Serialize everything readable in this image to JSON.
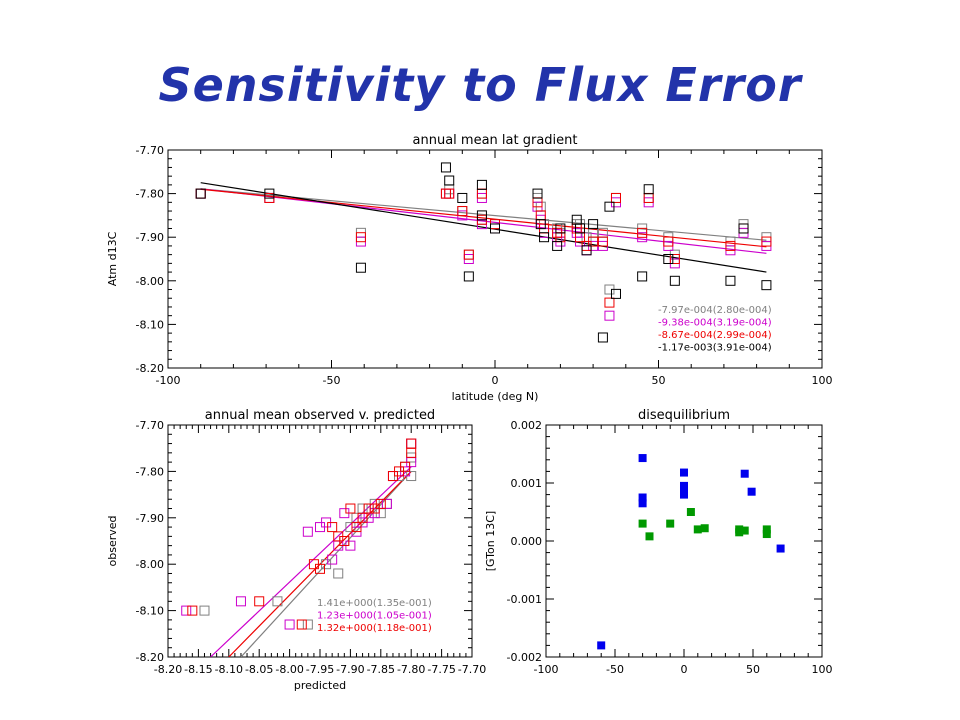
{
  "slide": {
    "title": "Sensitivity to Flux Error"
  },
  "chart_data": [
    {
      "id": "top",
      "type": "scatter",
      "title": "annual mean lat gradient",
      "xlabel": "latitude (deg N)",
      "ylabel": "Atm d13C",
      "xlim": [
        -100,
        100
      ],
      "ylim": [
        -8.2,
        -7.7
      ],
      "xticks": [
        "-100",
        "-50",
        "0",
        "50",
        "100"
      ],
      "yticks": [
        "-7.70",
        "-7.80",
        "-7.90",
        "-8.00",
        "-8.10",
        "-8.20"
      ],
      "x": [
        -90,
        -69,
        -41,
        -15,
        -14,
        -10,
        -8,
        -4,
        -4,
        0,
        13,
        14,
        15,
        19,
        20,
        25,
        26,
        28,
        30,
        33,
        35,
        37,
        45,
        47,
        53,
        55,
        72,
        76,
        83
      ],
      "series": [
        {
          "color": "#808080",
          "y": [
            -7.8,
            -7.81,
            -7.89,
            -7.8,
            -7.79,
            -7.84,
            -7.94,
            -7.86,
            -7.8,
            -7.87,
            -7.81,
            -7.83,
            -7.87,
            -7.88,
            -7.89,
            -7.87,
            -7.87,
            -7.9,
            -7.89,
            -7.89,
            -8.02,
            -7.81,
            -7.88,
            -7.81,
            -7.9,
            -7.94,
            -7.91,
            -7.87,
            -7.9
          ]
        },
        {
          "color": "#cc00cc",
          "y": [
            -7.8,
            -7.81,
            -7.91,
            -7.8,
            -7.8,
            -7.85,
            -7.95,
            -7.87,
            -7.81,
            -7.88,
            -7.83,
            -7.86,
            -7.89,
            -7.9,
            -7.91,
            -7.89,
            -7.91,
            -7.93,
            -7.92,
            -7.92,
            -8.08,
            -7.82,
            -7.9,
            -7.82,
            -7.92,
            -7.96,
            -7.93,
            -7.89,
            -7.92
          ]
        },
        {
          "color": "#ee0000",
          "y": [
            -7.8,
            -7.81,
            -7.9,
            -7.8,
            -7.8,
            -7.84,
            -7.94,
            -7.86,
            -7.8,
            -7.87,
            -7.82,
            -7.85,
            -7.88,
            -7.89,
            -7.9,
            -7.88,
            -7.9,
            -7.92,
            -7.91,
            -7.91,
            -8.05,
            -7.81,
            -7.89,
            -7.81,
            -7.91,
            -7.95,
            -7.92,
            -7.88,
            -7.91
          ]
        },
        {
          "color": "#000000",
          "y": [
            -7.8,
            -7.8,
            -7.97,
            -7.74,
            -7.77,
            -7.81,
            -7.99,
            -7.78,
            -7.85,
            -7.88,
            -7.8,
            -7.87,
            -7.9,
            -7.92,
            -7.88,
            -7.86,
            -7.88,
            -7.93,
            -7.87,
            -8.13,
            -7.83,
            -8.03,
            -7.99,
            -7.79,
            -7.95,
            -8.0,
            -8.0,
            -7.88,
            -8.01
          ]
        }
      ],
      "fits": [
        {
          "color": "#808080",
          "label": "-7.97e-004(2.80e-004)",
          "line": [
            [
              -90,
              -7.789
            ],
            [
              83,
              -7.907
            ]
          ]
        },
        {
          "color": "#cc00cc",
          "label": "-9.38e-004(3.19e-004)",
          "line": [
            [
              -90,
              -7.789
            ],
            [
              83,
              -7.937
            ]
          ]
        },
        {
          "color": "#ee0000",
          "label": "-8.67e-004(2.99e-004)",
          "line": [
            [
              -90,
              -7.79
            ],
            [
              83,
              -7.922
            ]
          ]
        },
        {
          "color": "#000000",
          "label": "-1.17e-003(3.91e-004)",
          "line": [
            [
              -90,
              -7.775
            ],
            [
              83,
              -7.98
            ]
          ]
        }
      ]
    },
    {
      "id": "bottom-left",
      "type": "scatter",
      "title": "annual mean observed v. predicted",
      "xlabel": "predicted",
      "ylabel": "observed",
      "xlim": [
        -8.2,
        -7.7
      ],
      "ylim": [
        -8.2,
        -7.7
      ],
      "xticks": [
        "-8.20",
        "-8.15",
        "-8.10",
        "-8.05",
        "-8.00",
        "-7.95",
        "-7.90",
        "-7.85",
        "-7.80",
        "-7.75",
        "-7.70"
      ],
      "yticks": [
        "-7.70",
        "-7.80",
        "-7.90",
        "-8.00",
        "-8.10",
        "-8.20"
      ],
      "series": [
        {
          "color": "#808080",
          "points": [
            [
              -8.14,
              -8.1
            ],
            [
              -8.02,
              -8.08
            ],
            [
              -7.97,
              -8.13
            ],
            [
              -7.94,
              -8.0
            ],
            [
              -7.92,
              -8.02
            ],
            [
              -7.91,
              -7.95
            ],
            [
              -7.9,
              -7.92
            ],
            [
              -7.89,
              -7.9
            ],
            [
              -7.88,
              -7.88
            ],
            [
              -7.87,
              -7.88
            ],
            [
              -7.86,
              -7.87
            ],
            [
              -7.85,
              -7.89
            ],
            [
              -7.84,
              -7.87
            ],
            [
              -7.82,
              -7.81
            ],
            [
              -7.81,
              -7.79
            ],
            [
              -7.8,
              -7.81
            ],
            [
              -7.8,
              -7.77
            ],
            [
              -7.8,
              -7.74
            ]
          ]
        },
        {
          "color": "#cc00cc",
          "points": [
            [
              -8.17,
              -8.1
            ],
            [
              -8.08,
              -8.08
            ],
            [
              -8.0,
              -8.13
            ],
            [
              -7.97,
              -7.93
            ],
            [
              -7.95,
              -7.92
            ],
            [
              -7.94,
              -7.91
            ],
            [
              -7.93,
              -7.99
            ],
            [
              -7.92,
              -7.96
            ],
            [
              -7.91,
              -7.89
            ],
            [
              -7.9,
              -7.96
            ],
            [
              -7.89,
              -7.93
            ],
            [
              -7.88,
              -7.91
            ],
            [
              -7.87,
              -7.9
            ],
            [
              -7.86,
              -7.89
            ],
            [
              -7.84,
              -7.87
            ],
            [
              -7.83,
              -7.81
            ],
            [
              -7.81,
              -7.8
            ],
            [
              -7.8,
              -7.78
            ],
            [
              -7.8,
              -7.74
            ]
          ]
        },
        {
          "color": "#ee0000",
          "points": [
            [
              -8.16,
              -8.1
            ],
            [
              -8.05,
              -8.08
            ],
            [
              -7.98,
              -8.13
            ],
            [
              -7.96,
              -8.0
            ],
            [
              -7.95,
              -8.01
            ],
            [
              -7.93,
              -7.92
            ],
            [
              -7.92,
              -7.94
            ],
            [
              -7.91,
              -7.95
            ],
            [
              -7.9,
              -7.88
            ],
            [
              -7.89,
              -7.92
            ],
            [
              -7.88,
              -7.9
            ],
            [
              -7.87,
              -7.88
            ],
            [
              -7.86,
              -7.88
            ],
            [
              -7.85,
              -7.87
            ],
            [
              -7.83,
              -7.81
            ],
            [
              -7.82,
              -7.8
            ],
            [
              -7.81,
              -7.79
            ],
            [
              -7.8,
              -7.76
            ],
            [
              -7.8,
              -7.74
            ]
          ]
        }
      ],
      "fits": [
        {
          "color": "#808080",
          "label": "1.41e+000(1.35e-001)",
          "line": [
            [
              -8.08,
              -8.2
            ],
            [
              -7.8,
              -7.8
            ]
          ]
        },
        {
          "color": "#cc00cc",
          "label": "1.23e+000(1.05e-001)",
          "line": [
            [
              -8.13,
              -8.2
            ],
            [
              -7.8,
              -7.79
            ]
          ]
        },
        {
          "color": "#ee0000",
          "label": "1.32e+000(1.18e-001)",
          "line": [
            [
              -8.1,
              -8.2
            ],
            [
              -7.8,
              -7.8
            ]
          ]
        }
      ]
    },
    {
      "id": "bottom-right",
      "type": "scatter",
      "title": "disequilibrium",
      "xlabel": "",
      "ylabel": "[GTon 13C]",
      "xlim": [
        -100,
        100
      ],
      "ylim": [
        -0.002,
        0.002
      ],
      "xticks": [
        "-100",
        "-50",
        "0",
        "50",
        "100"
      ],
      "yticks": [
        "0.002",
        "0.001",
        "0.000",
        "-0.001",
        "-0.002"
      ],
      "series": [
        {
          "color": "#0000ee",
          "points": [
            [
              -60,
              -0.0018
            ],
            [
              -30,
              0.00143
            ],
            [
              -30,
              0.00075
            ],
            [
              -30,
              0.00065
            ],
            [
              0,
              0.00118
            ],
            [
              0,
              0.00095
            ],
            [
              0,
              0.00088
            ],
            [
              0,
              0.0008
            ],
            [
              44,
              0.00116
            ],
            [
              49,
              0.00085
            ],
            [
              70,
              -0.00013
            ]
          ]
        },
        {
          "color": "#009900",
          "points": [
            [
              -30,
              0.0003
            ],
            [
              -25,
              8e-05
            ],
            [
              -10,
              0.0003
            ],
            [
              5,
              0.0005
            ],
            [
              10,
              0.0002
            ],
            [
              15,
              0.00022
            ],
            [
              40,
              0.0002
            ],
            [
              40,
              0.00015
            ],
            [
              44,
              0.00018
            ],
            [
              60,
              0.0002
            ],
            [
              60,
              0.00012
            ]
          ]
        }
      ]
    }
  ]
}
